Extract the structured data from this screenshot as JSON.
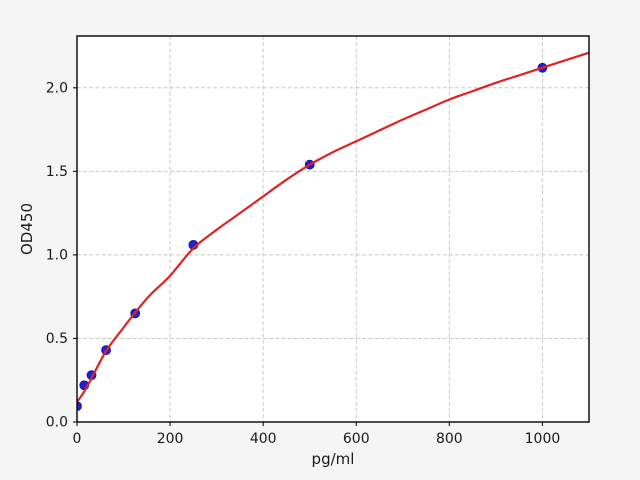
{
  "figure": {
    "background": "#f5f5f5",
    "plot_background": "#ffffff",
    "text_color": "#1a1a1a",
    "spine_color": "#000000"
  },
  "chart_data": {
    "type": "scatter",
    "title": "",
    "xlabel": "pg/ml",
    "ylabel": "OD450",
    "xlim": [
      0,
      1100
    ],
    "ylim": [
      0,
      2.31
    ],
    "x_ticks": [
      0,
      200,
      400,
      600,
      800,
      1000
    ],
    "x_tick_labels": [
      "0",
      "200",
      "400",
      "600",
      "800",
      "1000"
    ],
    "y_ticks": [
      0,
      0.5,
      1.0,
      1.5,
      2.0
    ],
    "y_tick_labels": [
      "0.0",
      "0.5",
      "1.0",
      "1.5",
      "2.0"
    ],
    "grid": {
      "visible": true,
      "style": "dashed",
      "color": "#c8c8c8"
    },
    "legend": "none",
    "series": [
      {
        "name": "standard-points",
        "type": "scatter",
        "marker": "circle",
        "color": "#2222cc",
        "edge_color": "#1212b0",
        "x": [
          0,
          15.6,
          31.2,
          62.5,
          125,
          250,
          500,
          1000
        ],
        "y": [
          0.095,
          0.22,
          0.28,
          0.43,
          0.65,
          1.06,
          1.54,
          2.12
        ]
      },
      {
        "name": "fit-curve",
        "type": "line",
        "color": "#e02222",
        "x": [
          0,
          15,
          31,
          62.5,
          100,
          125,
          157,
          200,
          250,
          300,
          350,
          400,
          450,
          500,
          550,
          600,
          650,
          700,
          750,
          800,
          850,
          900,
          950,
          1000,
          1050,
          1100
        ],
        "y": [
          0.12,
          0.18,
          0.26,
          0.425,
          0.565,
          0.655,
          0.76,
          0.875,
          1.04,
          1.15,
          1.25,
          1.35,
          1.45,
          1.54,
          1.615,
          1.68,
          1.745,
          1.81,
          1.87,
          1.93,
          1.98,
          2.03,
          2.075,
          2.12,
          2.165,
          2.21
        ]
      }
    ]
  }
}
